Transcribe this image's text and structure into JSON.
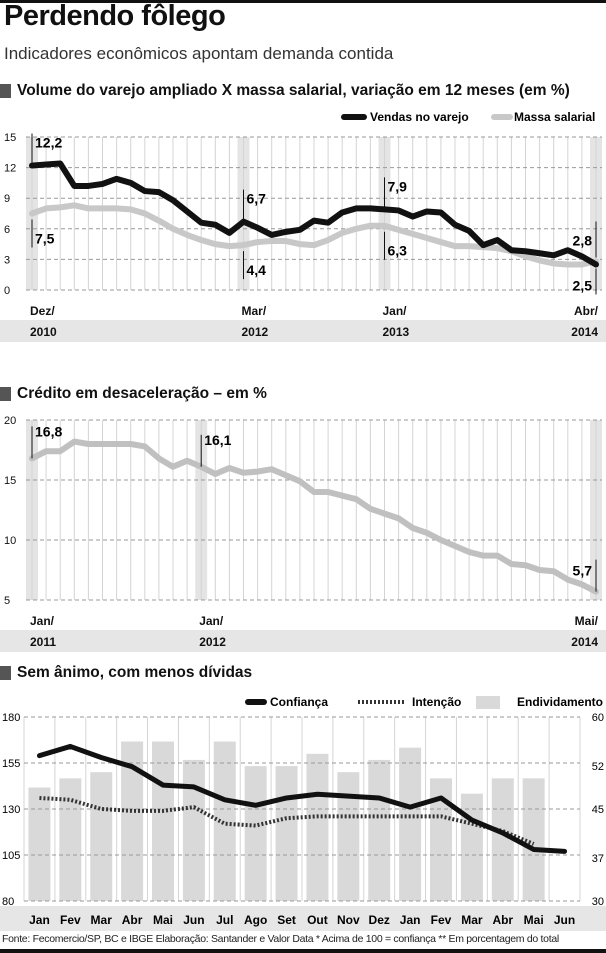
{
  "header": {
    "title": "Perdendo fôlego",
    "subtitle": "Indicadores econômicos apontam demanda contida"
  },
  "source": "Fonte: Fecomercio/SP, BC e IBGE Elaboração: Santander e Valor Data * Acima de 100 = confiança ** Em porcentagem do total",
  "colors": {
    "black": "#111111",
    "gray_line": "#c8c8c8",
    "bar": "#d9d9d9",
    "band": "#e4e4e4"
  },
  "chart_data": [
    {
      "type": "line",
      "title": "Volume do varejo ampliado X massa salarial, variação em 12 meses (em %)",
      "ylim": [
        0,
        15
      ],
      "yticks": [
        0,
        3,
        6,
        9,
        12,
        15
      ],
      "x_labels": [
        {
          "index": 0,
          "month": "Dez/",
          "year": "2010"
        },
        {
          "index": 15,
          "month": "Mar/",
          "year": "2012"
        },
        {
          "index": 25,
          "month": "Jan/",
          "year": "2013"
        },
        {
          "index": 40,
          "month": "Abr/",
          "year": "2014"
        }
      ],
      "series": [
        {
          "name": "Vendas no varejo",
          "color": "#111111",
          "values": [
            12.2,
            12.3,
            12.4,
            10.2,
            10.2,
            10.4,
            10.9,
            10.5,
            9.7,
            9.6,
            8.8,
            7.7,
            6.6,
            6.4,
            5.6,
            6.7,
            6.1,
            5.4,
            5.7,
            5.9,
            6.8,
            6.6,
            7.6,
            8.0,
            8.0,
            7.9,
            7.8,
            7.2,
            7.7,
            7.6,
            6.4,
            5.8,
            4.4,
            4.9,
            3.9,
            3.8,
            3.6,
            3.4,
            3.9,
            3.3,
            2.5
          ]
        },
        {
          "name": "Massa salarial",
          "color": "#c8c8c8",
          "values": [
            7.5,
            8.0,
            8.1,
            8.3,
            8.0,
            8.0,
            8.0,
            7.9,
            7.5,
            6.8,
            6.0,
            5.4,
            4.9,
            4.5,
            4.3,
            4.4,
            4.7,
            4.8,
            4.8,
            4.5,
            4.4,
            4.9,
            5.6,
            6.0,
            6.3,
            6.3,
            5.9,
            5.5,
            5.1,
            4.7,
            4.3,
            4.3,
            4.2,
            4.1,
            3.8,
            3.3,
            2.9,
            2.6,
            2.5,
            2.5,
            2.8
          ]
        }
      ],
      "annotations": [
        {
          "index": 0,
          "text": "12,2"
        },
        {
          "index": 0,
          "text": "7,5"
        },
        {
          "index": 15,
          "text": "6,7"
        },
        {
          "index": 15,
          "text": "4,4"
        },
        {
          "index": 25,
          "text": "7,9"
        },
        {
          "index": 25,
          "text": "6,3"
        },
        {
          "index": 40,
          "text": "2,8"
        },
        {
          "index": 40,
          "text": "2,5"
        }
      ]
    },
    {
      "type": "line",
      "title": "Crédito em desaceleração – em %",
      "ylim": [
        5,
        20
      ],
      "yticks": [
        5,
        10,
        15,
        20
      ],
      "x_labels": [
        {
          "index": 0,
          "month": "Jan/",
          "year": "2011"
        },
        {
          "index": 12,
          "month": "Jan/",
          "year": "2012"
        },
        {
          "index": 40,
          "month": "Mai/",
          "year": "2014"
        }
      ],
      "series": [
        {
          "name": "Crédito",
          "color": "#c0c0c0",
          "values": [
            16.8,
            17.4,
            17.4,
            18.2,
            18.0,
            18.0,
            18.0,
            18.0,
            17.8,
            16.8,
            16.1,
            16.6,
            16.1,
            15.5,
            16.0,
            15.6,
            15.7,
            15.9,
            15.4,
            14.9,
            14.0,
            14.0,
            13.7,
            13.4,
            12.6,
            12.2,
            11.8,
            11.0,
            10.6,
            10.0,
            9.5,
            9.0,
            8.7,
            8.7,
            8.0,
            7.9,
            7.5,
            7.4,
            6.7,
            6.3,
            5.7
          ]
        }
      ],
      "annotations": [
        {
          "index": 0,
          "text": "16,8"
        },
        {
          "index": 12,
          "text": "16,1"
        },
        {
          "index": 40,
          "text": "5,7"
        }
      ]
    },
    {
      "type": "bar+line",
      "title": "Sem ânimo, com menos dívidas",
      "categories": [
        "Jan",
        "Fev",
        "Mar",
        "Abr",
        "Mai",
        "Jun",
        "Jul",
        "Ago",
        "Set",
        "Out",
        "Nov",
        "Dez",
        "Jan",
        "Fev",
        "Mar",
        "Abr",
        "Mai",
        "Jun"
      ],
      "ylim_left": [
        80,
        180
      ],
      "yticks_left": [
        80,
        105,
        130,
        155,
        180
      ],
      "ylim_right": [
        30,
        60
      ],
      "yticks_right": [
        30,
        37,
        45,
        52,
        60
      ],
      "series": [
        {
          "name": "Confiança",
          "axis": "left",
          "style": "solid",
          "values": [
            159,
            164,
            158,
            153,
            143,
            142,
            135,
            132,
            136,
            138,
            137,
            136,
            131,
            136,
            124,
            117,
            108,
            107
          ]
        },
        {
          "name": "Intenção",
          "axis": "left",
          "style": "dotted",
          "values": [
            136,
            135,
            130,
            129,
            129,
            131,
            122,
            121,
            125,
            126,
            126,
            126,
            126,
            126,
            122,
            118,
            111,
            null
          ]
        },
        {
          "name": "Endividamento",
          "axis": "right",
          "style": "bar",
          "values": [
            48.5,
            50,
            51,
            56,
            56,
            53,
            56,
            52,
            52,
            54,
            51,
            53,
            55,
            50,
            47.5,
            50,
            50,
            null
          ]
        }
      ]
    }
  ]
}
